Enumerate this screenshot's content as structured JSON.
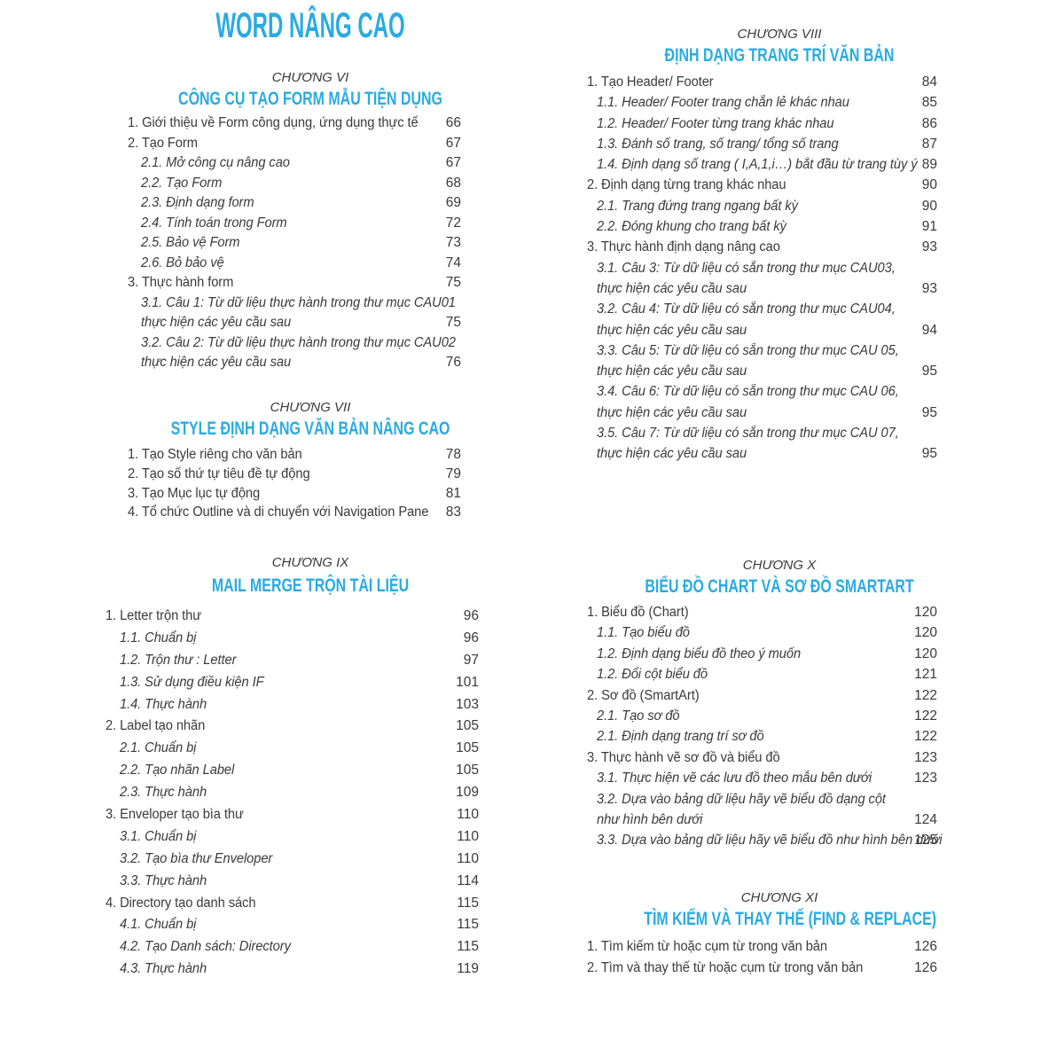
{
  "page": {
    "title": "WORD NÂNG CAO",
    "accent_color": "#29abe2",
    "text_color": "#3a3a3a",
    "background_color": "#ffffff"
  },
  "columns": [
    {
      "id": "col-left",
      "sections": [
        {
          "id": "sec-vi",
          "chapter": "CHƯƠNG VI",
          "heading": "CÔNG CỤ TẠO FORM MẪU TIỆN DỤNG",
          "entries": [
            {
              "label": "1. Giới thiệu về Form công dụng, ứng dụng thực tế",
              "page": "66",
              "level": 1
            },
            {
              "label": "2. Tạo Form",
              "page": "67",
              "level": 1
            },
            {
              "label": "2.1. Mở công cụ nâng cao",
              "page": "67",
              "level": 2
            },
            {
              "label": "2.2. Tạo Form",
              "page": "68",
              "level": 2
            },
            {
              "label": "2.3. Định dạng form",
              "page": "69",
              "level": 2
            },
            {
              "label": "2.4. Tính toán trong Form",
              "page": "72",
              "level": 2
            },
            {
              "label": "2.5. Bảo vệ Form",
              "page": "73",
              "level": 2
            },
            {
              "label": "2.6. Bỏ bảo vệ",
              "page": "74",
              "level": 2
            },
            {
              "label": "3. Thực hành form",
              "page": "75",
              "level": 1
            },
            {
              "label": "3.1. Câu 1: Từ dữ liệu thực hành trong thư mục CAU01",
              "label2": "thực hiện các yêu cầu sau",
              "page": "75",
              "level": 2
            },
            {
              "label": "3.2. Câu 2: Từ dữ liệu thực hành trong thư mục CAU02",
              "label2": "thực hiện các yêu cầu sau",
              "page": "76",
              "level": 2
            }
          ]
        },
        {
          "id": "sec-vii",
          "chapter": "CHƯƠNG VII",
          "heading": "STYLE ĐỊNH DẠNG VĂN BẢN NÂNG CAO",
          "entries": [
            {
              "label": "1. Tạo Style riêng cho văn bản",
              "page": "78",
              "level": 1
            },
            {
              "label": "2. Tạo số thứ tự tiêu đề tự động",
              "page": "79",
              "level": 1
            },
            {
              "label": "3. Tạo Mục lục tự động",
              "page": "81",
              "level": 1
            },
            {
              "label": "4. Tổ chức Outline và di chuyển với Navigation Pane",
              "page": "83",
              "level": 1
            }
          ]
        },
        {
          "id": "sec-ix",
          "chapter": "CHƯƠNG IX",
          "heading": "MAIL MERGE TRỘN TÀI LIỆU",
          "entries": [
            {
              "label": "1. Letter trộn thư",
              "page": "96",
              "level": 1
            },
            {
              "label": "1.1. Chuẩn bị",
              "page": "96",
              "level": 2
            },
            {
              "label": "1.2. Trộn thư : Letter",
              "page": "97",
              "level": 2
            },
            {
              "label": "1.3. Sử dụng điều kiện IF",
              "page": "101",
              "level": 2
            },
            {
              "label": "1.4. Thực hành",
              "page": "103",
              "level": 2
            },
            {
              "label": "2. Label tạo nhãn",
              "page": "105",
              "level": 1
            },
            {
              "label": "2.1. Chuẩn bị",
              "page": "105",
              "level": 2
            },
            {
              "label": "2.2. Tạo nhãn Label",
              "page": "105",
              "level": 2
            },
            {
              "label": "2.3. Thực hành",
              "page": "109",
              "level": 2
            },
            {
              "label": "3. Enveloper tạo bìa thư",
              "page": "110",
              "level": 1
            },
            {
              "label": "3.1. Chuẩn bị",
              "page": "110",
              "level": 2
            },
            {
              "label": "3.2. Tạo bìa thư Enveloper",
              "page": "110",
              "level": 2
            },
            {
              "label": "3.3. Thực hành",
              "page": "114",
              "level": 2
            },
            {
              "label": "4. Directory tạo danh sách",
              "page": "115",
              "level": 1
            },
            {
              "label": "4.1. Chuẩn bị",
              "page": "115",
              "level": 2
            },
            {
              "label": "4.2. Tạo Danh sách: Directory",
              "page": "115",
              "level": 2
            },
            {
              "label": "4.3. Thực hành",
              "page": "119",
              "level": 2
            }
          ]
        }
      ]
    },
    {
      "id": "col-right",
      "sections": [
        {
          "id": "sec-viii",
          "chapter": "CHƯƠNG VIII",
          "heading": "ĐỊNH DẠNG TRANG TRÍ VĂN BẢN",
          "entries": [
            {
              "label": "1. Tạo Header/ Footer",
              "page": "84",
              "level": 1
            },
            {
              "label": "1.1. Header/ Footer trang chẵn lẻ khác nhau",
              "page": "85",
              "level": 2
            },
            {
              "label": "1.2. Header/ Footer từng trang khác nhau",
              "page": "86",
              "level": 2
            },
            {
              "label": "1.3. Đánh số trang, số trang/ tổng số trang",
              "page": "87",
              "level": 2
            },
            {
              "label": "1.4. Định dạng số trang ( I,A,1,i…) bắt đầu từ trang tùy ý",
              "page": "89",
              "level": 2
            },
            {
              "label": "2. Định dạng từng trang khác nhau",
              "page": "90",
              "level": 1
            },
            {
              "label": "2.1. Trang đứng trang ngang bất kỳ",
              "page": "90",
              "level": 2
            },
            {
              "label": "2.2. Đóng khung cho trang bất kỳ",
              "page": "91",
              "level": 2
            },
            {
              "label": "3. Thực hành định dạng nâng cao",
              "page": "93",
              "level": 1
            },
            {
              "label": "3.1. Câu 3: Từ dữ liệu có sẵn trong thư mục CAU03,",
              "label2": "thực hiện các yêu cầu sau",
              "page": "93",
              "level": 2
            },
            {
              "label": "3.2. Câu 4: Từ dữ liệu có sẵn trong thư mục CAU04,",
              "label2": "thực hiện các yêu cầu sau",
              "page": "94",
              "level": 2
            },
            {
              "label": "3.3. Câu 5: Từ dữ liệu có sẵn trong thư mục CAU 05,",
              "label2": "thực hiện các yêu cầu sau",
              "page": "95",
              "level": 2
            },
            {
              "label": "3.4. Câu 6: Từ dữ liệu có sẵn trong thư mục CAU 06,",
              "label2": "thực hiện các yêu cầu sau",
              "page": "95",
              "level": 2
            },
            {
              "label": "3.5. Câu 7: Từ dữ liệu có sẵn trong thư mục CAU 07,",
              "label2": "thực hiện các yêu cầu sau",
              "page": "95",
              "level": 2
            }
          ]
        },
        {
          "id": "sec-x",
          "chapter": "CHƯƠNG X",
          "heading": "BIỂU ĐỒ CHART VÀ SƠ ĐỒ SMARTART",
          "entries": [
            {
              "label": "1. Biểu đồ (Chart)",
              "page": "120",
              "level": 1
            },
            {
              "label": "1.1. Tạo biểu đồ",
              "page": "120",
              "level": 2
            },
            {
              "label": "1.2. Định dạng biểu đồ theo ý muốn",
              "page": "120",
              "level": 2
            },
            {
              "label": "1.2. Đổi cột biểu đồ",
              "page": "121",
              "level": 2
            },
            {
              "label": "2. Sơ đồ (SmartArt)",
              "page": "122",
              "level": 1
            },
            {
              "label": "2.1. Tạo sơ đồ",
              "page": "122",
              "level": 2
            },
            {
              "label": "2.1. Định dạng trang trí sơ đồ",
              "page": "122",
              "level": 2
            },
            {
              "label": "3. Thực hành vẽ sơ đồ và biểu đồ",
              "page": "123",
              "level": 1
            },
            {
              "label": "3.1. Thực hiện vẽ các lưu đồ theo mẫu bên dưới",
              "page": "123",
              "level": 2
            },
            {
              "label": "3.2. Dựa vào bảng dữ liệu hãy vẽ biểu đồ dạng cột",
              "label2": "như hình bên dưới",
              "page": "124",
              "level": 2
            },
            {
              "label": "3.3. Dựa vào bảng dữ liệu hãy vẽ biểu đồ như hình bên dưới",
              "page": "125",
              "level": 2
            }
          ]
        },
        {
          "id": "sec-xi",
          "chapter": "CHƯƠNG XI",
          "heading": "TÌM KIẾM VÀ THAY THẾ (FIND & REPLACE)",
          "entries": [
            {
              "label": "1. Tìm kiếm từ hoặc cụm từ trong văn bản",
              "page": "126",
              "level": 1
            },
            {
              "label": "2. Tìm và thay thế từ hoặc cụm từ trong văn bản",
              "page": "126",
              "level": 1
            }
          ]
        }
      ]
    }
  ]
}
